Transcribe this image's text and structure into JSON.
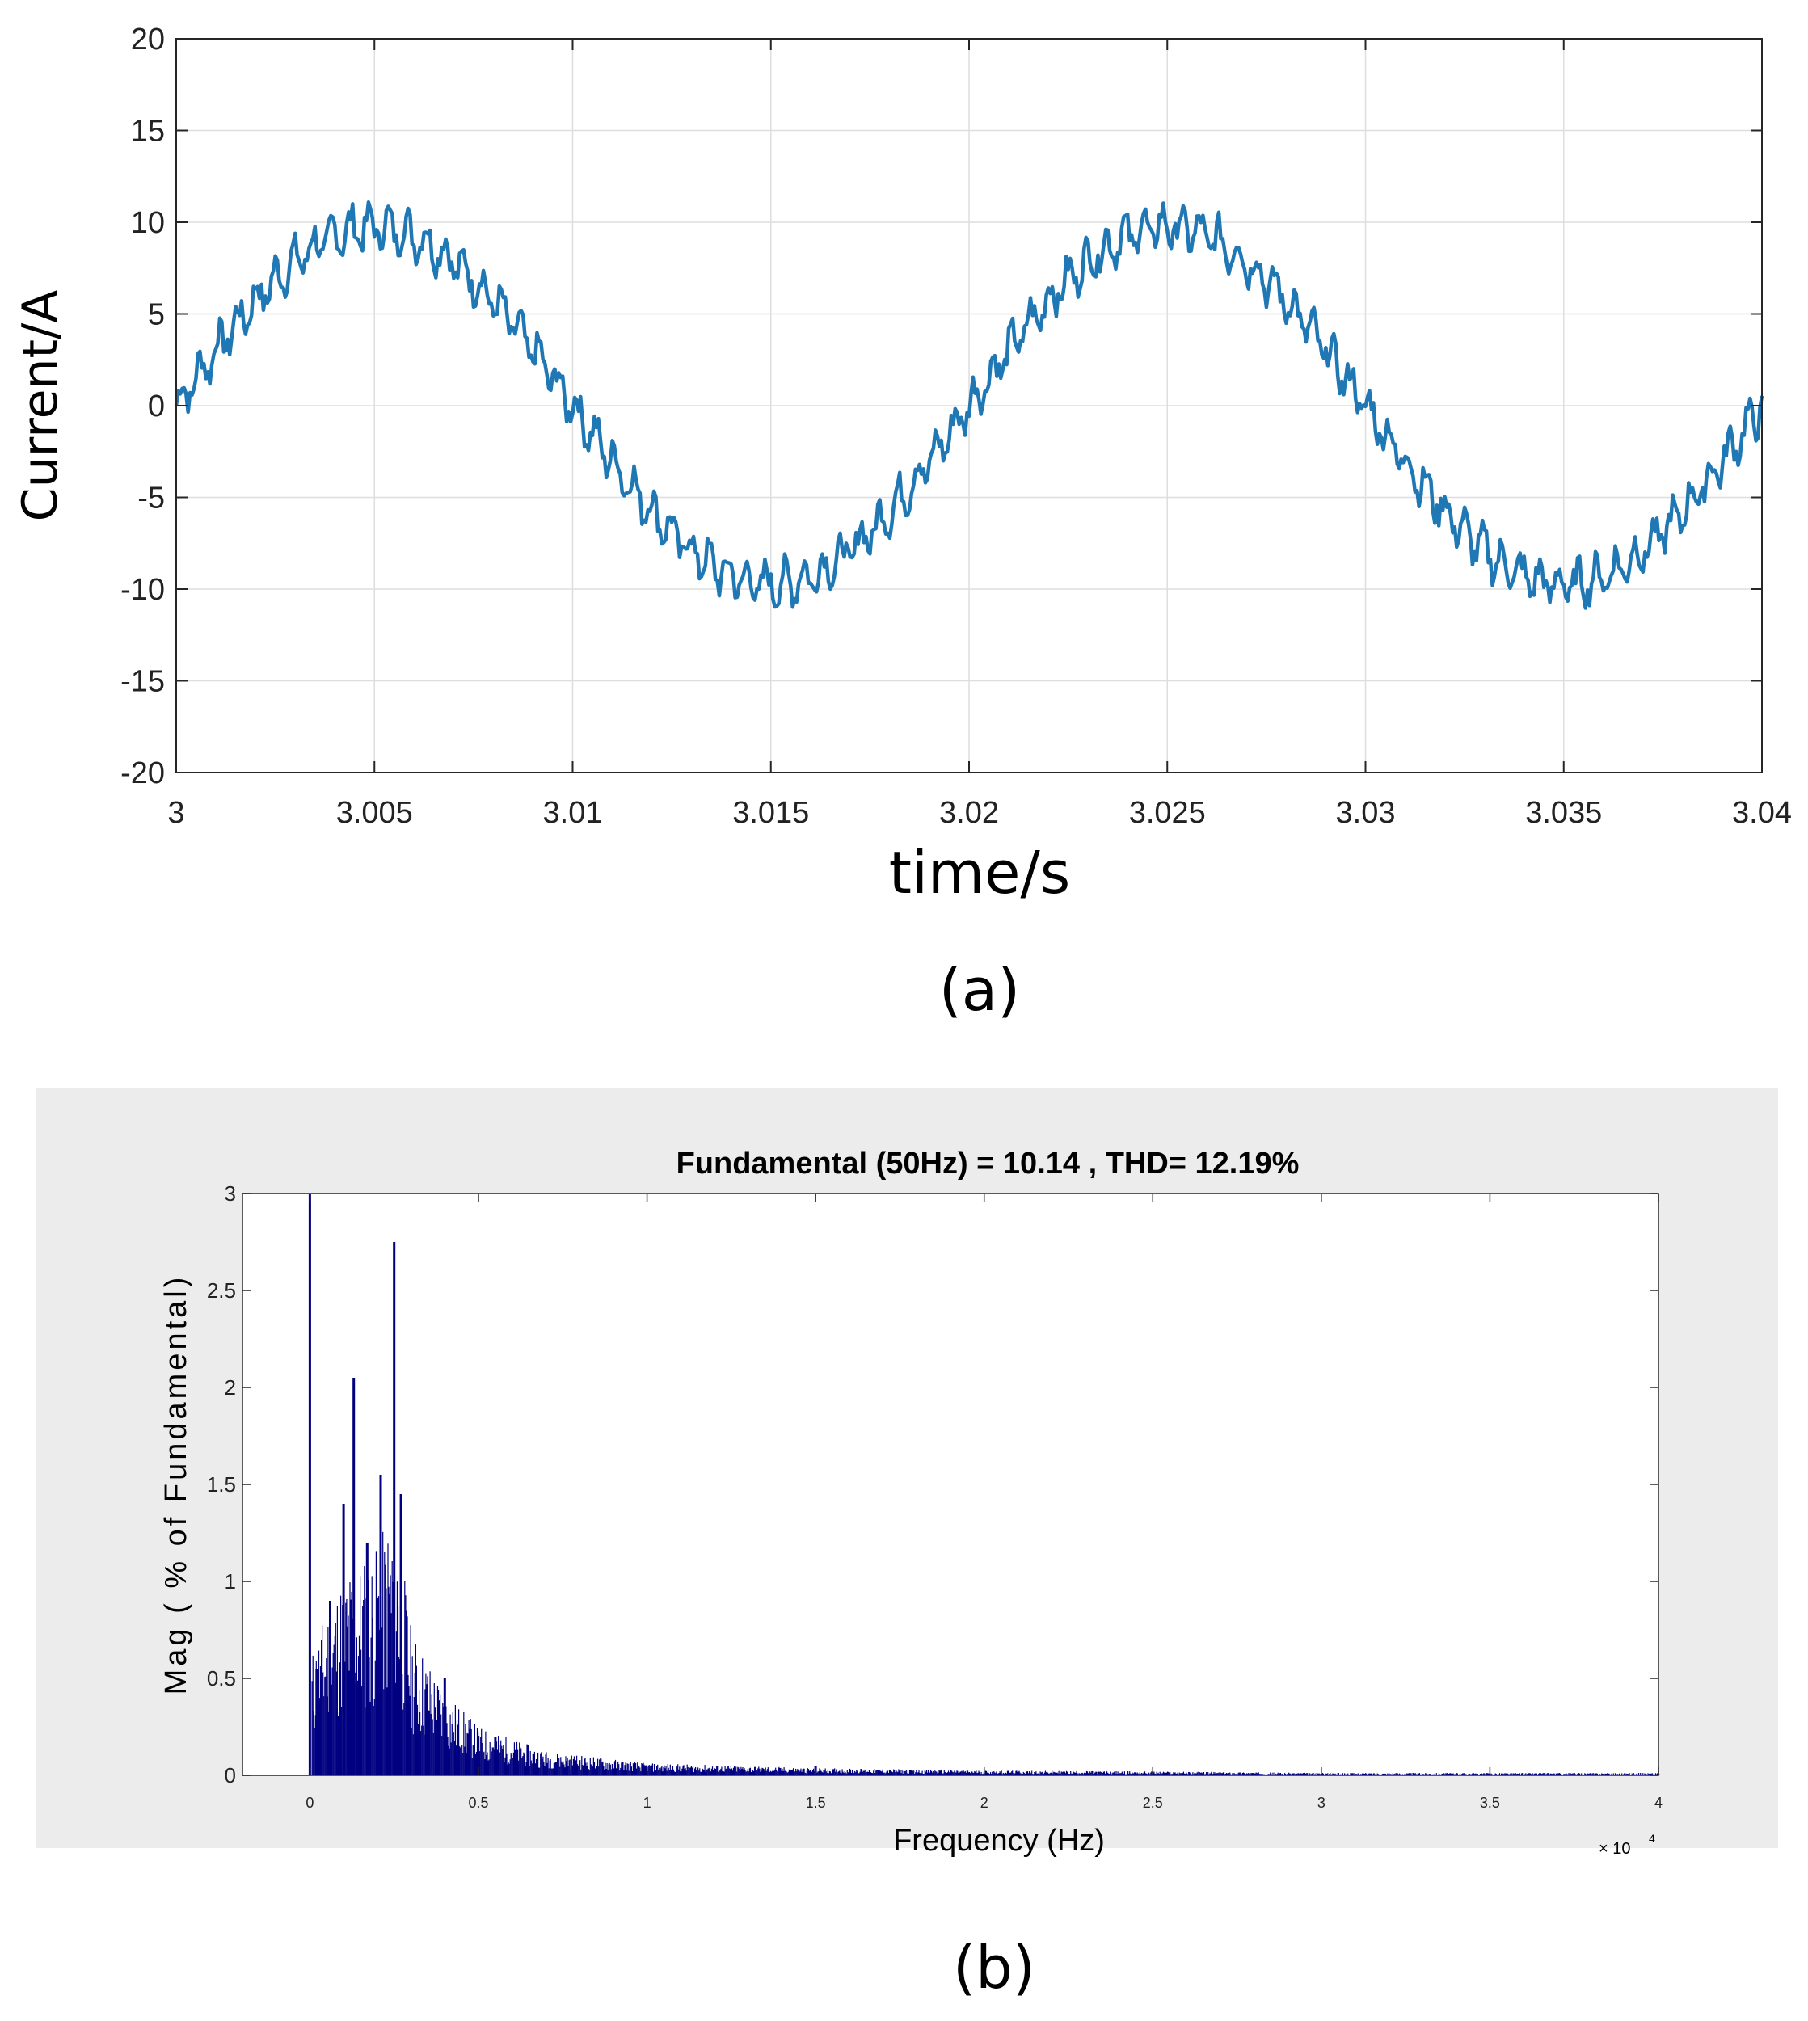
{
  "figure": {
    "caption_a": "(a)",
    "caption_b": "(b)"
  },
  "chart_data": [
    {
      "type": "line",
      "xlabel": "time/s",
      "ylabel": "Current/A",
      "xlim": [
        3,
        3.04
      ],
      "ylim": [
        -20,
        20
      ],
      "x_ticks": [
        3,
        3.005,
        3.01,
        3.015,
        3.02,
        3.025,
        3.03,
        3.035,
        3.04
      ],
      "x_tick_labels": [
        "3",
        "3.005",
        "3.01",
        "3.015",
        "3.02",
        "3.025",
        "3.03",
        "3.035",
        "3.04"
      ],
      "y_ticks": [
        20,
        15,
        10,
        5,
        0,
        -5,
        -10,
        -15,
        -20
      ],
      "y_tick_labels": [
        "20",
        "15",
        "10",
        "5",
        "0",
        "-5",
        "-10",
        "-15",
        "-20"
      ],
      "grid": true,
      "series": [
        {
          "name": "current",
          "color": "#1f77b4",
          "fundamental_hz": 50,
          "amplitude": 10.14,
          "x_start": 3,
          "x_end": 3.04,
          "samples": 800,
          "ripple_amplitude": 1.3
        }
      ]
    },
    {
      "type": "bar",
      "title": "Fundamental (50Hz) = 10.14 , THD= 12.19%",
      "xlabel": "Frequency (Hz)",
      "ylabel": "Mag ( % of Fundamental)",
      "x_multiplier_label": "× 10",
      "x_multiplier_exp": "4",
      "xlim": [
        -0.2,
        4
      ],
      "ylim": [
        0,
        3
      ],
      "x_ticks": [
        0,
        0.5,
        1,
        1.5,
        2,
        2.5,
        3,
        3.5,
        4
      ],
      "x_tick_labels": [
        "0",
        "0.5",
        "1",
        "1.5",
        "2",
        "2.5",
        "3",
        "3.5",
        "4"
      ],
      "y_ticks": [
        3,
        2.5,
        2,
        1.5,
        1,
        0.5,
        0
      ],
      "y_tick_labels": [
        "3",
        "2.5",
        "2",
        "1.5",
        "1",
        "0.5",
        "0"
      ],
      "bar_color": "#000080",
      "peaks": [
        {
          "freq": 0.0,
          "value": 3.0
        },
        {
          "freq": 0.02,
          "value": 0.55
        },
        {
          "freq": 0.06,
          "value": 0.9
        },
        {
          "freq": 0.1,
          "value": 1.4
        },
        {
          "freq": 0.13,
          "value": 2.05
        },
        {
          "freq": 0.17,
          "value": 1.2
        },
        {
          "freq": 0.21,
          "value": 1.55
        },
        {
          "freq": 0.25,
          "value": 2.75
        },
        {
          "freq": 0.27,
          "value": 1.45
        },
        {
          "freq": 0.4,
          "value": 0.5
        },
        {
          "freq": 0.55,
          "value": 0.2
        },
        {
          "freq": 1.5,
          "value": 0.05
        }
      ],
      "envelope": [
        {
          "f": 0.0,
          "v": 0.5
        },
        {
          "f": 0.05,
          "v": 0.7
        },
        {
          "f": 0.1,
          "v": 0.85
        },
        {
          "f": 0.15,
          "v": 0.9
        },
        {
          "f": 0.2,
          "v": 0.95
        },
        {
          "f": 0.25,
          "v": 1.15
        },
        {
          "f": 0.3,
          "v": 0.6
        },
        {
          "f": 0.4,
          "v": 0.35
        },
        {
          "f": 0.5,
          "v": 0.2
        },
        {
          "f": 0.7,
          "v": 0.1
        },
        {
          "f": 1.0,
          "v": 0.05
        },
        {
          "f": 1.5,
          "v": 0.03
        },
        {
          "f": 2.0,
          "v": 0.02
        },
        {
          "f": 2.6,
          "v": 0.015
        },
        {
          "f": 3.0,
          "v": 0.01
        },
        {
          "f": 4.0,
          "v": 0.01
        }
      ]
    }
  ]
}
